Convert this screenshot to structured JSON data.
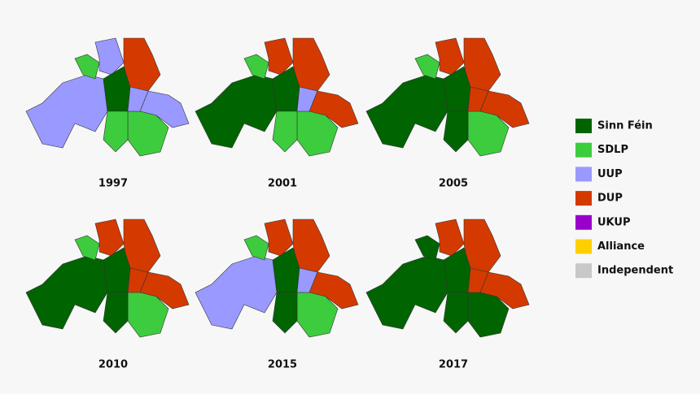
{
  "maps": [
    {
      "label": "1997"
    },
    {
      "label": "2001"
    },
    {
      "label": "2005"
    },
    {
      "label": "2010"
    },
    {
      "label": "2015"
    },
    {
      "label": "2017"
    }
  ],
  "legend": [
    {
      "name": "Sinn Féin",
      "color": "#006400"
    },
    {
      "name": "SDLP",
      "color": "#3dcc3d"
    },
    {
      "name": "UUP",
      "color": "#9999ff"
    },
    {
      "name": "DUP",
      "color": "#d43a00"
    },
    {
      "name": "UKUP",
      "color": "#9900cc"
    },
    {
      "name": "Alliance",
      "color": "#ffd000"
    },
    {
      "name": "Independent",
      "color": "#c8c8c8"
    }
  ]
}
